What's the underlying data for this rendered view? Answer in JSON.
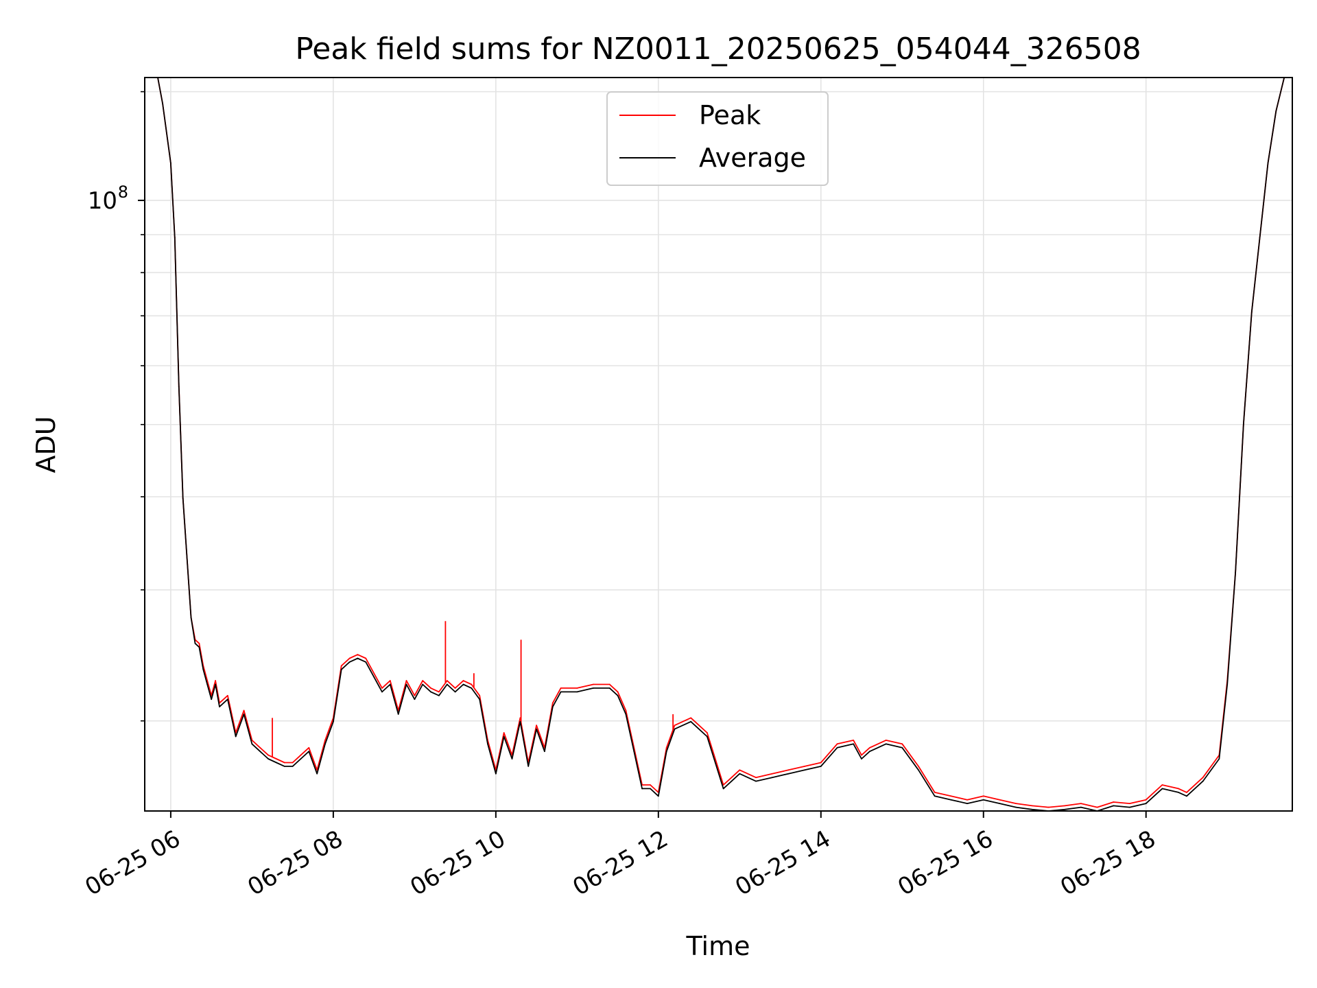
{
  "chart_data": {
    "type": "line",
    "title": "Peak field sums for NZ0011_20250625_054044_326508",
    "xlabel": "Time",
    "ylabel": "ADU",
    "x_unit": "hour of day (2025-06-25)",
    "xlim": [
      5.68,
      19.8
    ],
    "ylim_log10": [
      7.18,
      8.165
    ],
    "y_scale": "log",
    "x_ticks": [
      {
        "value": 6,
        "label": "06-25 06"
      },
      {
        "value": 8,
        "label": "06-25 08"
      },
      {
        "value": 10,
        "label": "06-25 10"
      },
      {
        "value": 12,
        "label": "06-25 12"
      },
      {
        "value": 14,
        "label": "06-25 14"
      },
      {
        "value": 16,
        "label": "06-25 16"
      },
      {
        "value": 18,
        "label": "06-25 18"
      }
    ],
    "y_ticks": [
      {
        "log10": 8,
        "base": "10",
        "exp": "8"
      }
    ],
    "y_minor_log10": [
      7.301,
      7.477,
      7.602,
      7.699,
      7.778,
      7.845,
      7.903,
      7.954,
      8.146
    ],
    "grid": true,
    "legend": {
      "placement": "upper center",
      "entries": [
        {
          "label": "Peak",
          "color": "#ff0000"
        },
        {
          "label": "Average",
          "color": "#000000"
        }
      ]
    },
    "series": [
      {
        "name": "Average",
        "color": "#000000",
        "x": [
          5.69,
          5.84,
          5.9,
          6.0,
          6.05,
          6.1,
          6.15,
          6.2,
          6.25,
          6.3,
          6.35,
          6.4,
          6.45,
          6.5,
          6.55,
          6.6,
          6.7,
          6.8,
          6.9,
          7.0,
          7.1,
          7.2,
          7.3,
          7.4,
          7.5,
          7.6,
          7.7,
          7.8,
          7.9,
          8.0,
          8.1,
          8.2,
          8.3,
          8.4,
          8.5,
          8.6,
          8.7,
          8.8,
          8.9,
          9.0,
          9.1,
          9.2,
          9.3,
          9.4,
          9.5,
          9.6,
          9.7,
          9.8,
          9.9,
          10.0,
          10.1,
          10.2,
          10.3,
          10.4,
          10.5,
          10.6,
          10.7,
          10.8,
          11.0,
          11.2,
          11.4,
          11.5,
          11.6,
          11.7,
          11.8,
          11.9,
          12.0,
          12.1,
          12.2,
          12.4,
          12.6,
          12.8,
          12.9,
          13.0,
          13.2,
          13.4,
          13.6,
          13.8,
          14.0,
          14.2,
          14.4,
          14.5,
          14.6,
          14.8,
          15.0,
          15.2,
          15.4,
          15.6,
          15.8,
          16.0,
          16.2,
          16.4,
          16.6,
          16.8,
          17.0,
          17.2,
          17.4,
          17.6,
          17.8,
          18.0,
          18.2,
          18.4,
          18.5,
          18.7,
          18.9,
          19.0,
          19.1,
          19.15,
          19.2,
          19.3,
          19.4,
          19.5,
          19.6,
          19.7,
          19.8
        ],
        "y_log10": [
          8.165,
          8.165,
          8.13,
          8.05,
          7.95,
          7.75,
          7.6,
          7.52,
          7.44,
          7.405,
          7.4,
          7.37,
          7.35,
          7.33,
          7.35,
          7.32,
          7.33,
          7.28,
          7.31,
          7.27,
          7.26,
          7.25,
          7.245,
          7.24,
          7.24,
          7.25,
          7.26,
          7.23,
          7.27,
          7.3,
          7.37,
          7.38,
          7.385,
          7.38,
          7.36,
          7.34,
          7.35,
          7.31,
          7.35,
          7.33,
          7.35,
          7.34,
          7.335,
          7.35,
          7.34,
          7.35,
          7.345,
          7.33,
          7.27,
          7.23,
          7.28,
          7.25,
          7.3,
          7.24,
          7.29,
          7.26,
          7.32,
          7.34,
          7.34,
          7.345,
          7.345,
          7.335,
          7.31,
          7.26,
          7.21,
          7.21,
          7.2,
          7.26,
          7.29,
          7.3,
          7.28,
          7.21,
          7.22,
          7.23,
          7.22,
          7.225,
          7.23,
          7.235,
          7.24,
          7.265,
          7.27,
          7.25,
          7.26,
          7.27,
          7.265,
          7.235,
          7.2,
          7.195,
          7.19,
          7.195,
          7.19,
          7.185,
          7.182,
          7.18,
          7.182,
          7.185,
          7.18,
          7.187,
          7.185,
          7.19,
          7.21,
          7.205,
          7.2,
          7.22,
          7.25,
          7.35,
          7.5,
          7.6,
          7.7,
          7.85,
          7.95,
          8.05,
          8.12,
          8.165,
          8.165
        ]
      },
      {
        "name": "Peak",
        "color": "#ff0000",
        "x": [
          5.69,
          5.84,
          5.9,
          6.0,
          6.05,
          6.1,
          6.15,
          6.2,
          6.25,
          6.3,
          6.35,
          6.4,
          6.45,
          6.5,
          6.55,
          6.6,
          6.7,
          6.8,
          6.9,
          7.0,
          7.1,
          7.2,
          7.3,
          7.4,
          7.5,
          7.6,
          7.7,
          7.8,
          7.9,
          8.0,
          8.1,
          8.2,
          8.3,
          8.4,
          8.5,
          8.6,
          8.7,
          8.8,
          8.9,
          9.0,
          9.1,
          9.2,
          9.3,
          9.4,
          9.5,
          9.6,
          9.7,
          9.8,
          9.9,
          10.0,
          10.1,
          10.2,
          10.3,
          10.4,
          10.5,
          10.6,
          10.7,
          10.8,
          11.0,
          11.2,
          11.4,
          11.5,
          11.6,
          11.7,
          11.8,
          11.9,
          12.0,
          12.1,
          12.2,
          12.4,
          12.6,
          12.8,
          12.9,
          13.0,
          13.2,
          13.4,
          13.6,
          13.8,
          14.0,
          14.2,
          14.4,
          14.5,
          14.6,
          14.8,
          15.0,
          15.2,
          15.4,
          15.6,
          15.8,
          16.0,
          16.2,
          16.4,
          16.6,
          16.8,
          17.0,
          17.2,
          17.4,
          17.6,
          17.8,
          18.0,
          18.2,
          18.4,
          18.5,
          18.7,
          18.9,
          19.0,
          19.1,
          19.15,
          19.2,
          19.3,
          19.4,
          19.5,
          19.6,
          19.7,
          19.8
        ],
        "y_log10": [
          8.165,
          8.165,
          8.13,
          8.05,
          7.95,
          7.75,
          7.6,
          7.52,
          7.44,
          7.41,
          7.405,
          7.375,
          7.355,
          7.335,
          7.355,
          7.325,
          7.335,
          7.285,
          7.315,
          7.275,
          7.265,
          7.255,
          7.25,
          7.245,
          7.245,
          7.255,
          7.265,
          7.235,
          7.275,
          7.305,
          7.375,
          7.385,
          7.39,
          7.385,
          7.365,
          7.345,
          7.355,
          7.315,
          7.355,
          7.335,
          7.355,
          7.345,
          7.34,
          7.355,
          7.345,
          7.355,
          7.35,
          7.335,
          7.275,
          7.235,
          7.285,
          7.255,
          7.305,
          7.245,
          7.295,
          7.265,
          7.325,
          7.345,
          7.345,
          7.35,
          7.35,
          7.34,
          7.315,
          7.265,
          7.215,
          7.215,
          7.205,
          7.265,
          7.295,
          7.305,
          7.285,
          7.215,
          7.225,
          7.235,
          7.225,
          7.23,
          7.235,
          7.24,
          7.245,
          7.27,
          7.275,
          7.255,
          7.265,
          7.275,
          7.27,
          7.24,
          7.205,
          7.2,
          7.195,
          7.2,
          7.195,
          7.19,
          7.187,
          7.185,
          7.187,
          7.19,
          7.185,
          7.192,
          7.19,
          7.195,
          7.215,
          7.21,
          7.205,
          7.225,
          7.255,
          7.355,
          7.5,
          7.6,
          7.7,
          7.85,
          7.95,
          8.05,
          8.12,
          8.165,
          8.165
        ],
        "spikes": [
          {
            "x": 7.25,
            "y_log10": 7.305
          },
          {
            "x": 9.38,
            "y_log10": 7.435
          },
          {
            "x": 9.73,
            "y_log10": 7.365
          },
          {
            "x": 10.31,
            "y_log10": 7.41
          },
          {
            "x": 12.18,
            "y_log10": 7.31
          }
        ]
      }
    ]
  }
}
